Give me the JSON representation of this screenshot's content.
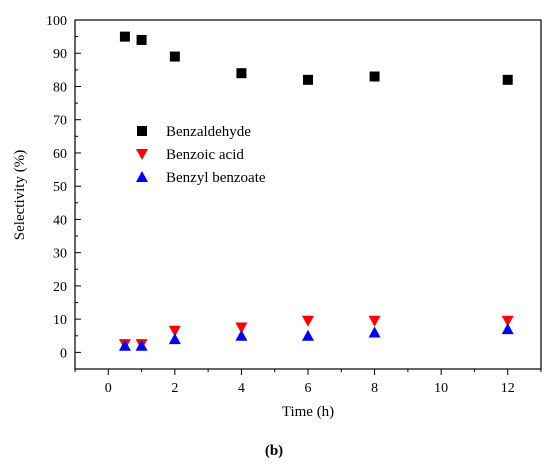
{
  "chart_data": {
    "type": "scatter",
    "caption": "(b)",
    "xlabel": "Time (h)",
    "ylabel": "Selectivity (%)",
    "xlim": [
      -1,
      13
    ],
    "ylim": [
      -5,
      100
    ],
    "x_ticks": [
      0,
      2,
      4,
      6,
      8,
      10,
      12
    ],
    "y_ticks": [
      0,
      10,
      20,
      30,
      40,
      50,
      60,
      70,
      80,
      90,
      100
    ],
    "grid": false,
    "legend_position": "center-left",
    "series": [
      {
        "name": "Benzaldehyde",
        "marker": "square",
        "color": "#000000",
        "x": [
          0.5,
          1,
          2,
          4,
          6,
          8,
          12
        ],
        "y": [
          95,
          94,
          89,
          84,
          82,
          83,
          82
        ]
      },
      {
        "name": "Benzoic acid",
        "marker": "triangle-down",
        "color": "#ff0000",
        "x": [
          0.5,
          1,
          2,
          4,
          6,
          8,
          12
        ],
        "y": [
          2.5,
          2.5,
          6.5,
          7.5,
          9.5,
          9.5,
          9.5
        ]
      },
      {
        "name": "Benzyl benzoate",
        "marker": "triangle-up",
        "color": "#0000ff",
        "x": [
          0.5,
          1,
          2,
          4,
          6,
          8,
          12
        ],
        "y": [
          2,
          2,
          4,
          5,
          5,
          6,
          7
        ]
      }
    ]
  }
}
